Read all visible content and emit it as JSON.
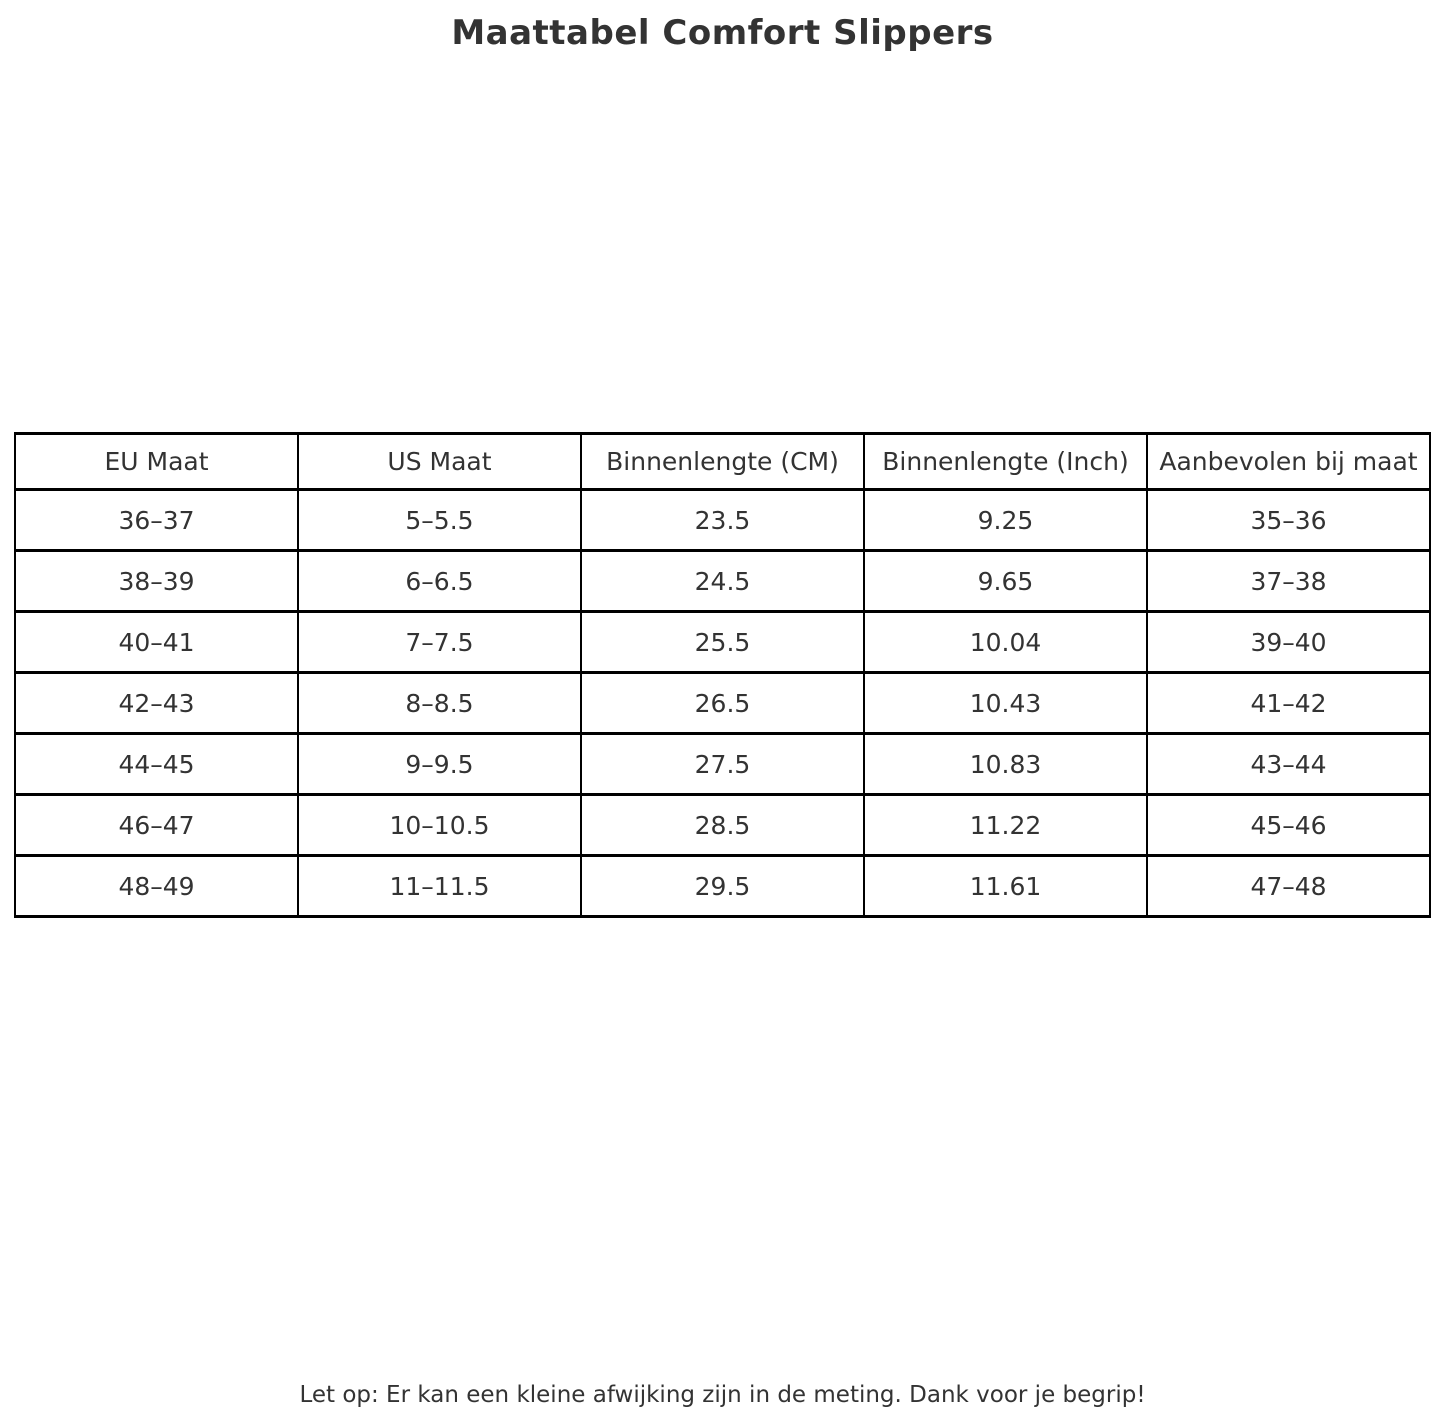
{
  "page": {
    "title": "Maattabel Comfort Slippers",
    "footer_note": "Let op: Er kan een kleine afwijking zijn in de meting. Dank voor je begrip!"
  },
  "chart_data": {
    "type": "table",
    "title": "Maattabel Comfort Slippers",
    "columns": [
      "EU Maat",
      "US Maat",
      "Binnenlengte (CM)",
      "Binnenlengte (Inch)",
      "Aanbevolen bij maat"
    ],
    "rows": [
      [
        "36–37",
        "5–5.5",
        "23.5",
        "9.25",
        "35–36"
      ],
      [
        "38–39",
        "6–6.5",
        "24.5",
        "9.65",
        "37–38"
      ],
      [
        "40–41",
        "7–7.5",
        "25.5",
        "10.04",
        "39–40"
      ],
      [
        "42–43",
        "8–8.5",
        "26.5",
        "10.43",
        "41–42"
      ],
      [
        "44–45",
        "9–9.5",
        "27.5",
        "10.83",
        "43–44"
      ],
      [
        "46–47",
        "10–10.5",
        "28.5",
        "11.22",
        "45–46"
      ],
      [
        "48–49",
        "11–11.5",
        "29.5",
        "11.61",
        "47–48"
      ]
    ],
    "footnote": "Let op: Er kan een kleine afwijking zijn in de meting. Dank voor je begrip!",
    "layout": {
      "grid": "on",
      "columns_equal_width": true,
      "header_row": true
    }
  },
  "colors": {
    "text": "#333333",
    "border": "#000000",
    "background": "#ffffff"
  }
}
